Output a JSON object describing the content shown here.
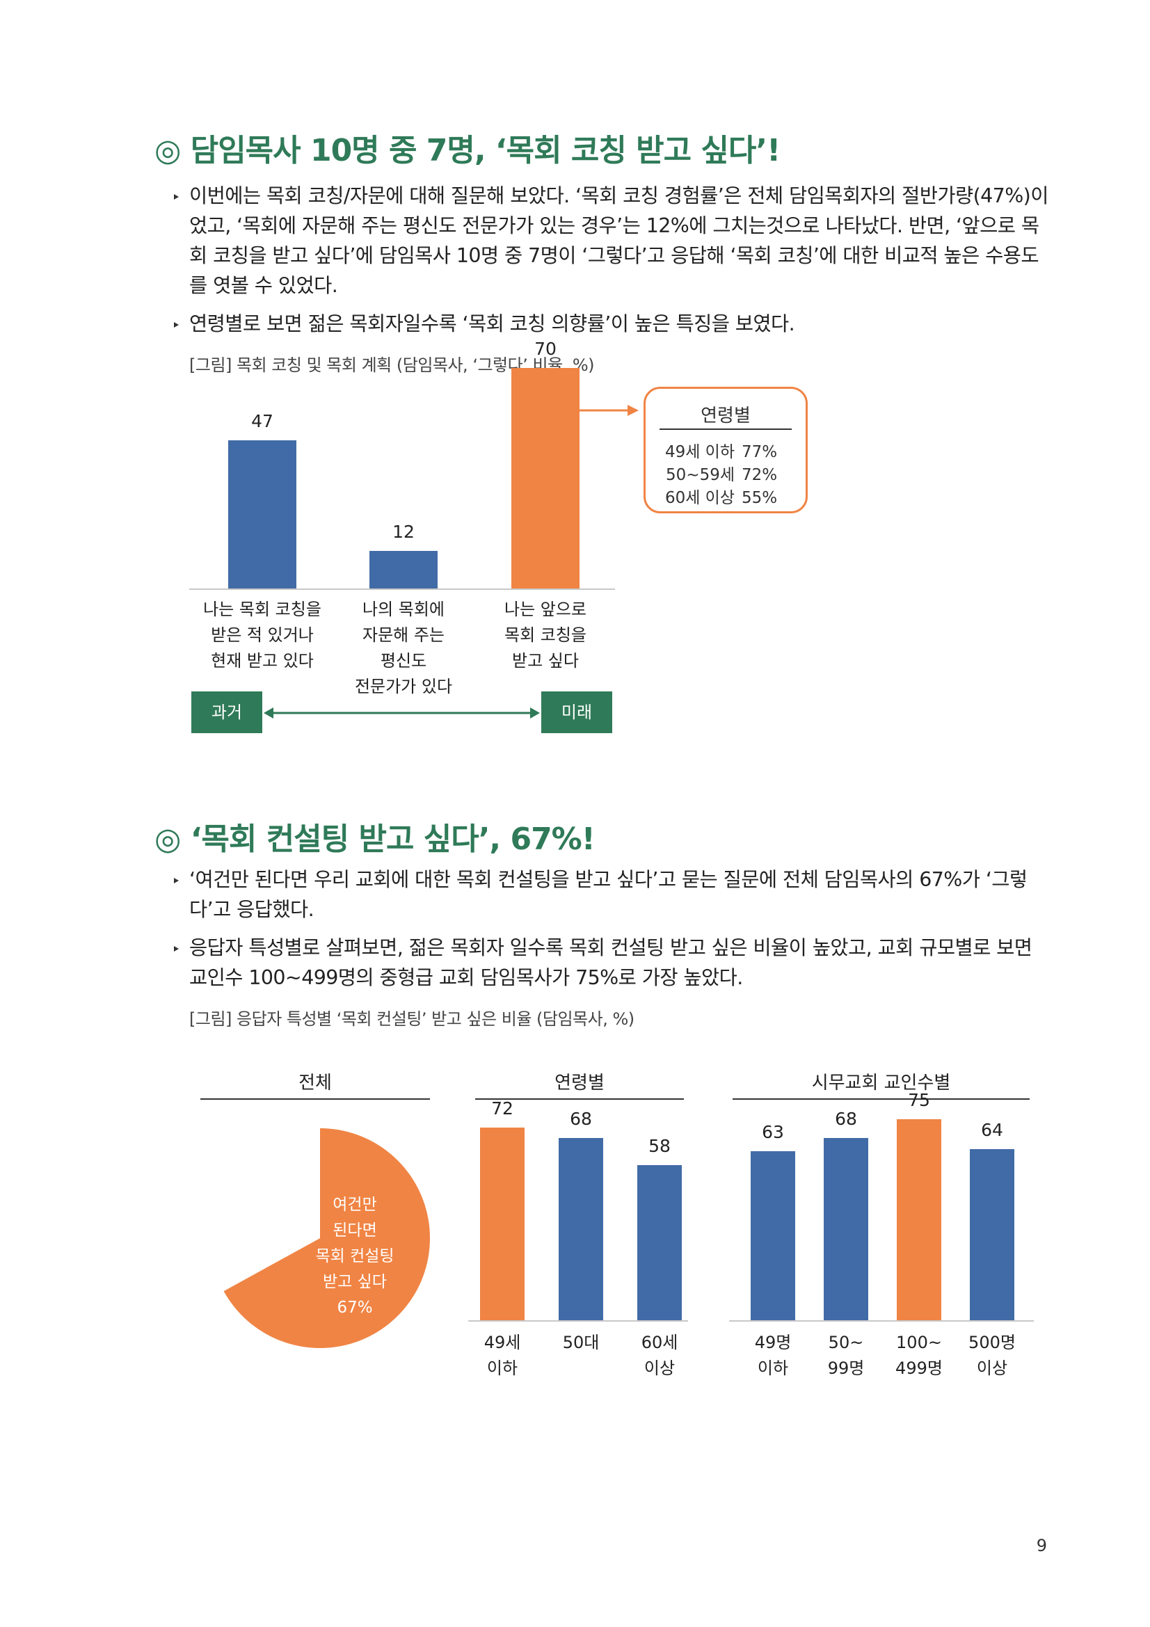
{
  "section1": {
    "heading": "◎ 담임목사 10명 중 7명, ‘목회 코칭 받고 싶다’!",
    "bullets": [
      "이번에는 목회 코칭/자문에 대해 질문해 보았다. ‘목회 코칭 경험률’은 전체 담임목회자의 절반가량(47%)이었고, ‘목회에 자문해 주는 평신도 전문가가 있는 경우’는 12%에 그치는것으로 나타났다. 반면, ‘앞으로 목회 코칭을 받고 싶다’에 담임목사 10명 중 7명이 ‘그렇다’고 응답해 ‘목회 코칭’에 대한 비교적 높은 수용도를 엿볼 수 있었다.",
      "연령별로 보면 젊은 목회자일수록 ‘목회 코칭 의향률’이 높은 특징을 보였다."
    ],
    "caption": "[그림] 목회 코칭 및 목회 계획 (담임목사, ‘그렇다’ 비율, %)",
    "past_label": "과거",
    "future_label": "미래",
    "age_box": {
      "title": "연령별",
      "rows": [
        {
          "label": "49세 이하",
          "value": "77%"
        },
        {
          "label": "50~59세",
          "value": "72%"
        },
        {
          "label": "60세 이상",
          "value": "55%"
        }
      ]
    }
  },
  "section2": {
    "heading": "◎ ‘목회 컨설팅 받고 싶다’, 67%!",
    "bullets": [
      "‘여건만 된다면 우리 교회에 대한 목회 컨설팅을 받고 싶다’고 묻는 질문에 전체 담임목사의 67%가 ‘그렇다’고 응답했다.",
      "응답자 특성별로 살펴보면, 젊은 목회자 일수록 목회 컨설팅 받고 싶은 비율이 높았고, 교회 규모별로 보면 교인수 100~499명의 중형급 교회 담임목사가 75%로 가장 높았다."
    ],
    "caption": "[그림] 응답자 특성별 ‘목회 컨설팅’ 받고 싶은 비율 (담임목사, %)"
  },
  "chart_data": [
    {
      "type": "bar",
      "categories": [
        "나는 목회 코칭을 받은 적 있거나 현재 받고 있다",
        "나의 목회에 자문해 주는 평신도 전문가가 있다",
        "나는 앞으로 목회 코칭을 받고 싶다"
      ],
      "category_lines": [
        [
          "나는 목회 코칭을",
          "받은 적 있거나",
          "현재 받고 있다"
        ],
        [
          "나의 목회에",
          "자문해 주는",
          "평신도",
          "전문가가 있다"
        ],
        [
          "나는 앞으로",
          "목회 코칭을",
          "받고 싶다"
        ]
      ],
      "values": [
        47,
        12,
        70
      ],
      "colors": [
        "#416ba6",
        "#416ba6",
        "#f08444"
      ],
      "ylim": [
        0,
        75
      ]
    },
    {
      "type": "pie",
      "title": "전체",
      "slices": [
        {
          "label": "여건만 된다면 목회 컨설팅 받고 싶다",
          "value": 67,
          "color": "#f08444"
        },
        {
          "label": "",
          "value": 33,
          "color": "#ffffff"
        }
      ],
      "slice_label_lines": [
        "여건만",
        "된다면",
        "목회 컨설팅",
        "받고 싶다",
        "67%"
      ]
    },
    {
      "type": "bar",
      "title": "연령별",
      "categories": [
        "49세 이하",
        "50대",
        "60세 이상"
      ],
      "category_lines": [
        [
          "49세",
          "이하"
        ],
        [
          "50대"
        ],
        [
          "60세",
          "이상"
        ]
      ],
      "values": [
        72,
        68,
        58
      ],
      "colors": [
        "#f08444",
        "#416ba6",
        "#416ba6"
      ],
      "ylim": [
        0,
        80
      ]
    },
    {
      "type": "bar",
      "title": "시무교회 교인수별",
      "categories": [
        "49명 이하",
        "50~99명",
        "100~499명",
        "500명 이상"
      ],
      "category_lines": [
        [
          "49명",
          "이하"
        ],
        [
          "50~",
          "99명"
        ],
        [
          "100~",
          "499명"
        ],
        [
          "500명",
          "이상"
        ]
      ],
      "values": [
        63,
        68,
        75,
        64
      ],
      "colors": [
        "#416ba6",
        "#416ba6",
        "#f08444",
        "#416ba6"
      ],
      "ylim": [
        0,
        80
      ]
    }
  ],
  "page_number": "9"
}
